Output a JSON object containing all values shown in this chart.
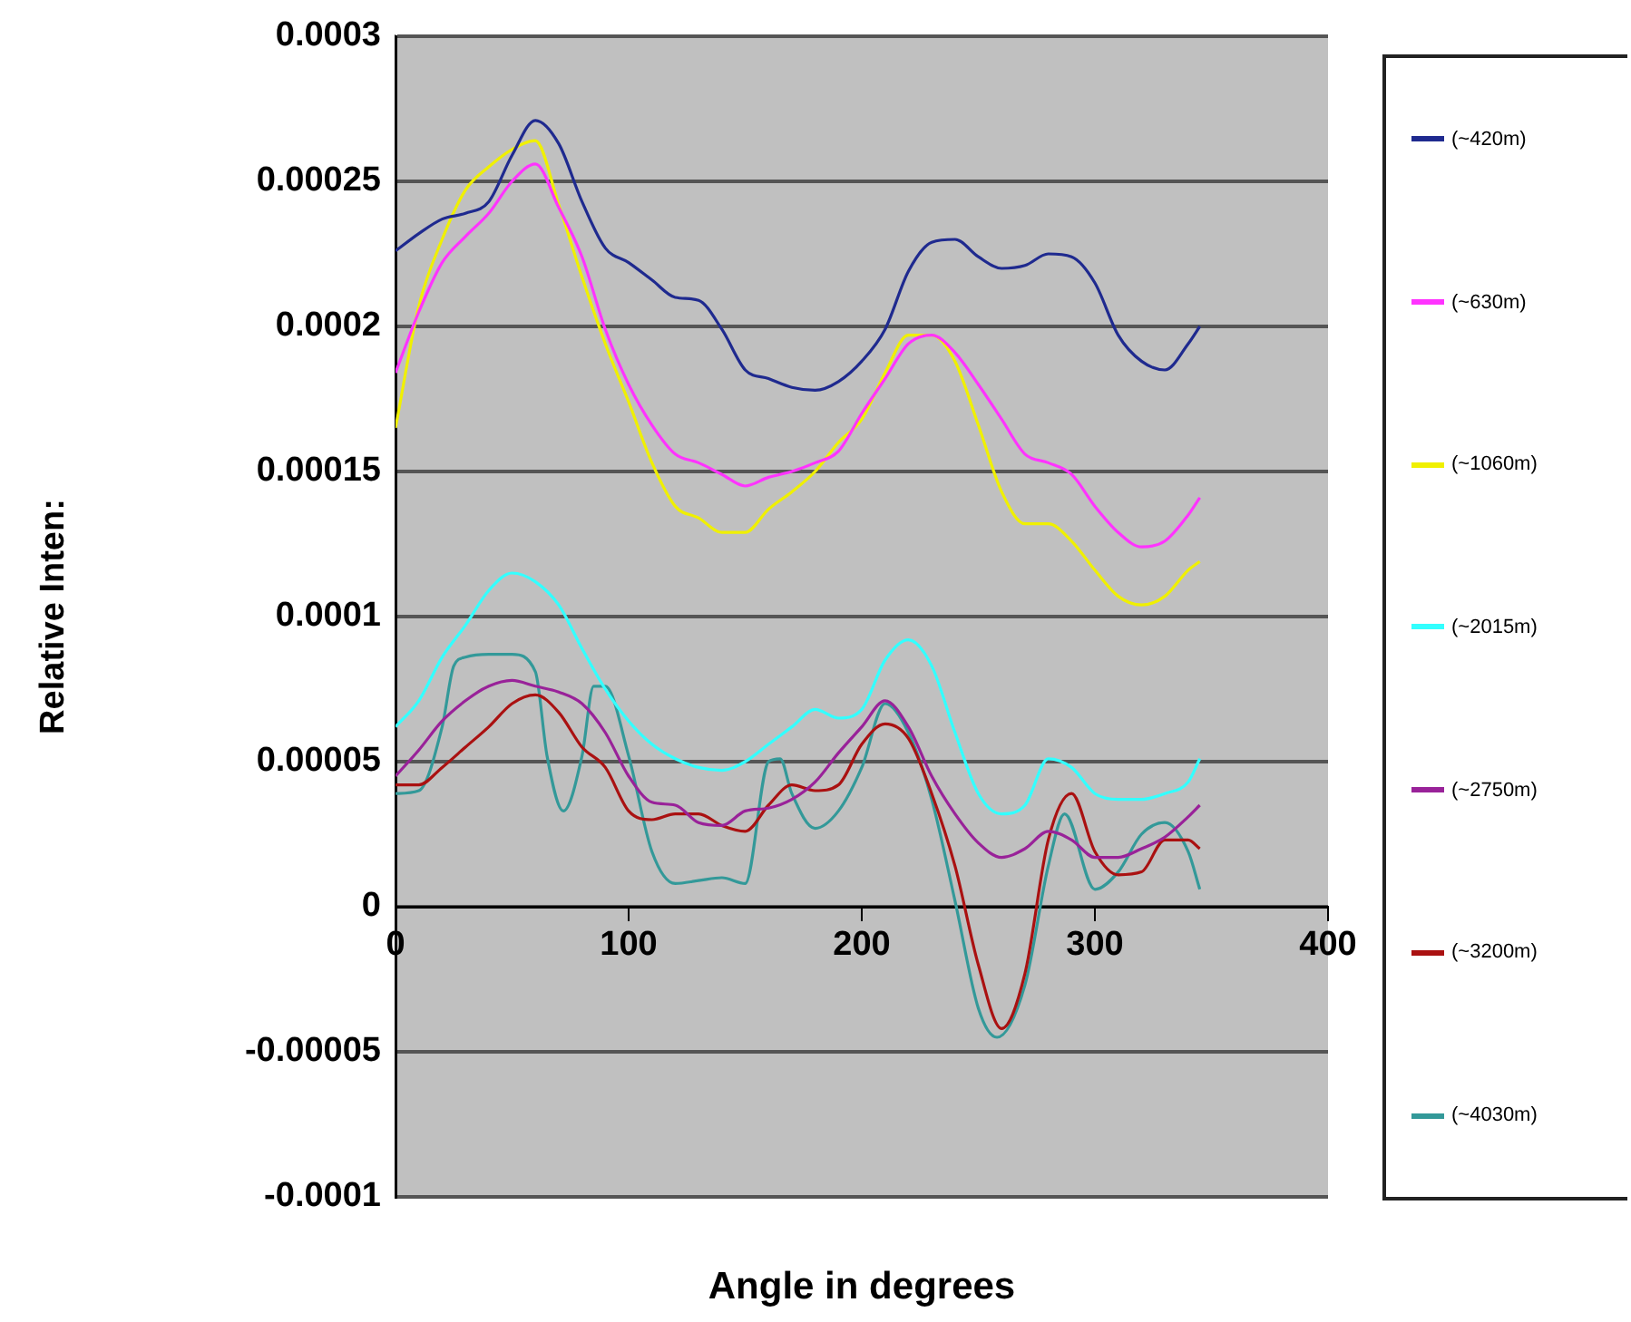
{
  "chart_data": {
    "type": "line",
    "xlabel": "Angle in degrees",
    "ylabel": "Relative Inten:",
    "xlim": [
      0,
      400
    ],
    "xticks": [
      0,
      100,
      200,
      300,
      400
    ],
    "ylim": [
      -0.0001,
      0.0003
    ],
    "yticks": [
      {
        "value": -0.0001,
        "label": "-0.0001"
      },
      {
        "value": -5e-05,
        "label": "-0.00005"
      },
      0,
      {
        "value": 5e-05,
        "label": "0.00005"
      },
      {
        "value": 0.0001,
        "label": "0.0001"
      },
      {
        "value": 0.00015,
        "label": "0.00015"
      },
      {
        "value": 0.0002,
        "label": "0.0002"
      },
      {
        "value": 0.00025,
        "label": "0.00025"
      },
      {
        "value": 0.0003,
        "label": "0.0003"
      }
    ],
    "grid": "y",
    "legend": "right",
    "marker": "none",
    "line_style": "solid",
    "x": [
      0,
      10,
      20,
      30,
      40,
      50,
      60,
      70,
      80,
      90,
      100,
      110,
      120,
      130,
      140,
      150,
      160,
      170,
      180,
      190,
      200,
      210,
      220,
      230,
      240,
      250,
      260,
      270,
      280,
      290,
      300,
      310,
      320,
      330,
      340,
      345
    ],
    "series": [
      {
        "name": "(~420m)",
        "color": "#1f2a8f",
        "values": [
          0.000226,
          0.000232,
          0.000237,
          0.000239,
          0.000243,
          0.000259,
          0.000271,
          0.000263,
          0.000243,
          0.000227,
          0.000222,
          0.000216,
          0.00021,
          0.000209,
          0.000199,
          0.000185,
          0.000182,
          0.000179,
          0.000178,
          0.000181,
          0.000188,
          0.000199,
          0.000219,
          0.000229,
          0.00023,
          0.000224,
          0.00022,
          0.000221,
          0.000225,
          0.000224,
          0.000215,
          0.000197,
          0.000188,
          0.000185,
          0.000194,
          0.0002
        ]
      },
      {
        "name": "(~630m)",
        "color": "#ff33ff",
        "values": [
          0.000184,
          0.000205,
          0.000222,
          0.000231,
          0.000239,
          0.00025,
          0.000256,
          0.000241,
          0.000224,
          0.000199,
          0.00018,
          0.000166,
          0.000156,
          0.000153,
          0.000149,
          0.000145,
          0.000148,
          0.00015,
          0.000153,
          0.000157,
          0.00017,
          0.000182,
          0.000194,
          0.000197,
          0.000191,
          0.00018,
          0.000168,
          0.000156,
          0.000153,
          0.000149,
          0.000138,
          0.000129,
          0.000124,
          0.000126,
          0.000135,
          0.000141
        ]
      },
      {
        "name": "(~1060m)",
        "color": "#f0f000",
        "values": [
          0.000165,
          0.000207,
          0.00023,
          0.000247,
          0.000255,
          0.000261,
          0.000264,
          0.000242,
          0.000217,
          0.000194,
          0.000174,
          0.000153,
          0.000138,
          0.000134,
          0.000129,
          0.000129,
          0.000137,
          0.000143,
          0.00015,
          0.00016,
          0.000168,
          0.000184,
          0.000197,
          0.000197,
          0.000188,
          0.000166,
          0.000143,
          0.000132,
          0.000132,
          0.000126,
          0.000116,
          0.000107,
          0.000104,
          0.000107,
          0.000116,
          0.000119
        ]
      },
      {
        "name": "(~2015m)",
        "color": "#33ffff",
        "values": [
          6.2e-05,
          7.1e-05,
          8.6e-05,
          9.7e-05,
          0.000109,
          0.000115,
          0.000112,
          0.000104,
          8.9e-05,
          7.5e-05,
          6.4e-05,
          5.6e-05,
          5.1e-05,
          4.8e-05,
          4.7e-05,
          5e-05,
          5.6e-05,
          6.2e-05,
          6.8e-05,
          6.5e-05,
          6.8e-05,
          8.5e-05,
          9.2e-05,
          8.3e-05,
          6e-05,
          3.9e-05,
          3.2e-05,
          3.5e-05,
          5.1e-05,
          4.8e-05,
          3.9e-05,
          3.7e-05,
          3.7e-05,
          3.9e-05,
          4.3e-05,
          5.1e-05
        ]
      },
      {
        "name": "(~2750m)",
        "color": "#992299",
        "values": [
          4.5e-05,
          5.4e-05,
          6.4e-05,
          7.1e-05,
          7.6e-05,
          7.8e-05,
          7.6e-05,
          7.4e-05,
          7e-05,
          6e-05,
          4.5e-05,
          3.6e-05,
          3.5e-05,
          2.9e-05,
          2.8e-05,
          3.3e-05,
          3.4e-05,
          3.7e-05,
          4.3e-05,
          5.3e-05,
          6.2e-05,
          7.1e-05,
          6.2e-05,
          4.5e-05,
          3.2e-05,
          2.2e-05,
          1.7e-05,
          2e-05,
          2.6e-05,
          2.3e-05,
          1.7e-05,
          1.7e-05,
          2e-05,
          2.4e-05,
          3.1e-05,
          3.5e-05
        ]
      },
      {
        "name": "(~3200m)",
        "color": "#aa1111",
        "values": [
          4.2e-05,
          4.2e-05,
          4.8e-05,
          5.5e-05,
          6.2e-05,
          7e-05,
          7.3e-05,
          6.7e-05,
          5.5e-05,
          4.8e-05,
          3.3e-05,
          3e-05,
          3.2e-05,
          3.2e-05,
          2.8e-05,
          2.6e-05,
          3.5e-05,
          4.2e-05,
          4e-05,
          4.2e-05,
          5.6e-05,
          6.3e-05,
          5.8e-05,
          3.9e-05,
          1.4e-05,
          -2e-05,
          -4.2e-05,
          -2.3e-05,
          2.3e-05,
          3.9e-05,
          1.9e-05,
          1.1e-05,
          1.2e-05,
          2.3e-05,
          2.3e-05,
          2e-05
        ]
      },
      {
        "name": "(~4030m)",
        "color": "#339999",
        "x": [
          0,
          10,
          20,
          25,
          30,
          40,
          50,
          60,
          65,
          72,
          80,
          85,
          90,
          100,
          110,
          120,
          130,
          140,
          150,
          160,
          165,
          170,
          180,
          190,
          200,
          210,
          220,
          230,
          240,
          250,
          258,
          270,
          280,
          287,
          300,
          310,
          320,
          330,
          340,
          345
        ],
        "values": [
          3.9e-05,
          4e-05,
          6.2e-05,
          8.3e-05,
          8.6e-05,
          8.7e-05,
          8.7e-05,
          8.1e-05,
          5.2e-05,
          3.3e-05,
          5.2e-05,
          7.6e-05,
          7.6e-05,
          5.2e-05,
          1.9e-05,
          8e-06,
          9e-06,
          1e-05,
          8e-06,
          5e-05,
          5.1e-05,
          3.9e-05,
          2.7e-05,
          3.3e-05,
          4.8e-05,
          7e-05,
          6e-05,
          3.7e-05,
          2e-06,
          -3.5e-05,
          -4.5e-05,
          -2.7e-05,
          1.4e-05,
          3.2e-05,
          6e-06,
          1.2e-05,
          2.5e-05,
          2.9e-05,
          1.9e-05,
          6e-06
        ]
      }
    ]
  }
}
